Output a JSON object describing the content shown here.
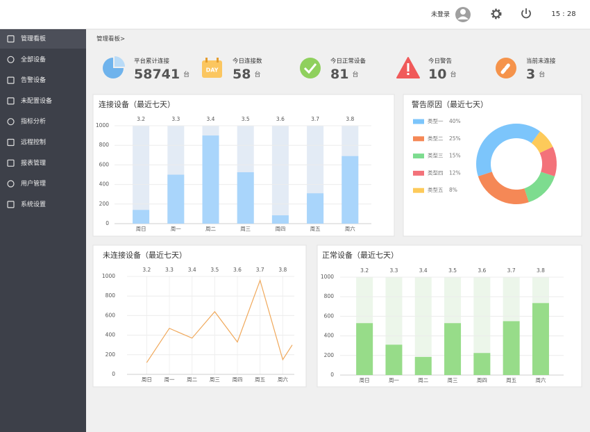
{
  "header": {
    "user": "未登录",
    "time": "15 : 28"
  },
  "sidebar": {
    "items": [
      "管理看板",
      "全部设备",
      "告警设备",
      "未配置设备",
      "指标分析",
      "远程控制",
      "报表管理",
      "用户管理",
      "系统设置"
    ]
  },
  "breadcrumb": "管理看板>",
  "stats": [
    {
      "label": "平台累计连接",
      "value": 58741,
      "unit": "台"
    },
    {
      "label": "今日连接数",
      "value": 58,
      "unit": "台"
    },
    {
      "label": "今日正常设备",
      "value": 81,
      "unit": "台"
    },
    {
      "label": "今日警告",
      "value": 10,
      "unit": "台"
    },
    {
      "label": "当前未连接",
      "value": 3,
      "unit": "台"
    }
  ],
  "chart_data": [
    {
      "type": "bar",
      "title": "连接设备（最近七天）",
      "categories": [
        "周日",
        "周一",
        "周二",
        "周三",
        "周四",
        "周五",
        "周六"
      ],
      "top_labels": [
        "3.2",
        "3.3",
        "3.4",
        "3.5",
        "3.6",
        "3.7",
        "3.8"
      ],
      "values": [
        140,
        500,
        900,
        525,
        85,
        310,
        690
      ],
      "color": "#a9d5fb",
      "track_color": "#e3ebf5",
      "ylim": [
        0,
        1000
      ],
      "yticks": [
        0,
        200,
        400,
        600,
        800,
        1000
      ],
      "grid": true
    },
    {
      "type": "pie",
      "title": "警告原因（最近七天）",
      "categories": [
        "类型一",
        "类型二",
        "类型三",
        "类型四",
        "类型五"
      ],
      "values": [
        40,
        25,
        15,
        12,
        8
      ],
      "value_labels": [
        "40%",
        "25%",
        "15%",
        "12%",
        "8%"
      ],
      "colors": [
        "#7cc5fb",
        "#f58856",
        "#7ddc8f",
        "#f3727a",
        "#fdca5a"
      ]
    },
    {
      "type": "line",
      "title": "未连接设备（最近七天）",
      "categories": [
        "周日",
        "周一",
        "周二",
        "周三",
        "周四",
        "周五",
        "周六",
        null
      ],
      "top_labels": [
        "3.2",
        "3.3",
        "3.4",
        "3.5",
        "3.6",
        "3.7",
        "3.8",
        null
      ],
      "values": [
        120,
        470,
        370,
        640,
        330,
        960,
        150,
        300
      ],
      "color": "#f0a85a",
      "ylim": [
        0,
        1000
      ],
      "yticks": [
        0,
        200,
        400,
        600,
        800,
        1000
      ],
      "grid": true
    },
    {
      "type": "bar",
      "title": "正常设备（最近七天）",
      "categories": [
        "周日",
        "周一",
        "周二",
        "周三",
        "周四",
        "周五",
        "周六"
      ],
      "top_labels": [
        "3.2",
        "3.3",
        "3.4",
        "3.5",
        "3.6",
        "3.7",
        "3.8"
      ],
      "values": [
        530,
        310,
        185,
        530,
        225,
        550,
        735
      ],
      "color": "#97dc89",
      "track_color": "#ecf6ea",
      "ylim": [
        0,
        1000
      ],
      "yticks": [
        0,
        200,
        400,
        600,
        800,
        1000
      ],
      "grid": true
    }
  ]
}
